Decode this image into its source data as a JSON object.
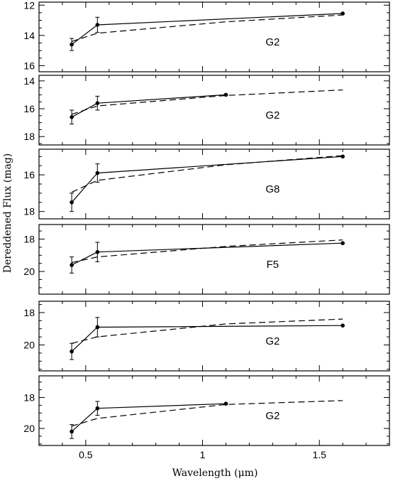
{
  "chart_data": {
    "type": "line",
    "xlabel": "Wavelength (μm)",
    "ylabel": "Dereddened Flux (mag)",
    "xlim": [
      0.3,
      1.8
    ],
    "x_ticks": [
      {
        "value": 0.5,
        "label": "0.5"
      },
      {
        "value": 1.0,
        "label": "1"
      },
      {
        "value": 1.5,
        "label": "1.5"
      }
    ],
    "y_inverted": true,
    "panels": [
      {
        "label": "G2",
        "ylim": [
          16.4,
          11.8
        ],
        "y_ticks": [
          {
            "value": 12,
            "label": "12"
          },
          {
            "value": 14,
            "label": "14"
          },
          {
            "value": 16,
            "label": "16"
          }
        ],
        "observed": [
          {
            "x": 0.44,
            "y": 14.6,
            "err": 0.4
          },
          {
            "x": 0.55,
            "y": 13.3,
            "err": 0.5
          },
          {
            "x": 1.6,
            "y": 12.55,
            "err": null
          }
        ],
        "model": [
          {
            "x": 0.44,
            "y": 14.4
          },
          {
            "x": 0.55,
            "y": 13.85
          },
          {
            "x": 1.1,
            "y": 13.1
          },
          {
            "x": 1.6,
            "y": 12.65
          }
        ]
      },
      {
        "label": "G2",
        "ylim": [
          18.6,
          13.6
        ],
        "y_ticks": [
          {
            "value": 14,
            "label": "14"
          },
          {
            "value": 16,
            "label": "16"
          },
          {
            "value": 18,
            "label": "18"
          }
        ],
        "observed": [
          {
            "x": 0.44,
            "y": 16.6,
            "err": 0.5
          },
          {
            "x": 0.55,
            "y": 15.6,
            "err": 0.5
          },
          {
            "x": 1.1,
            "y": 15.0,
            "err": null
          }
        ],
        "model": [
          {
            "x": 0.44,
            "y": 16.4
          },
          {
            "x": 0.55,
            "y": 15.8
          },
          {
            "x": 1.1,
            "y": 15.05
          },
          {
            "x": 1.6,
            "y": 14.65
          }
        ]
      },
      {
        "label": "G8",
        "ylim": [
          18.4,
          14.6
        ],
        "y_ticks": [
          {
            "value": 16,
            "label": "16"
          },
          {
            "value": 18,
            "label": "18"
          }
        ],
        "observed": [
          {
            "x": 0.44,
            "y": 17.5,
            "err": 0.5
          },
          {
            "x": 0.55,
            "y": 15.9,
            "err": 0.5
          },
          {
            "x": 1.6,
            "y": 15.0,
            "err": null
          }
        ],
        "model": [
          {
            "x": 0.44,
            "y": 16.95
          },
          {
            "x": 0.55,
            "y": 16.3
          },
          {
            "x": 1.1,
            "y": 15.45
          },
          {
            "x": 1.6,
            "y": 14.95
          }
        ]
      },
      {
        "label": "F5",
        "ylim": [
          21.4,
          17.1
        ],
        "y_ticks": [
          {
            "value": 18,
            "label": "18"
          },
          {
            "value": 20,
            "label": "20"
          }
        ],
        "observed": [
          {
            "x": 0.44,
            "y": 19.6,
            "err": 0.5
          },
          {
            "x": 0.55,
            "y": 18.8,
            "err": 0.6
          },
          {
            "x": 1.6,
            "y": 18.25,
            "err": null
          }
        ],
        "model": [
          {
            "x": 0.44,
            "y": 19.45
          },
          {
            "x": 0.55,
            "y": 19.1
          },
          {
            "x": 1.1,
            "y": 18.45
          },
          {
            "x": 1.6,
            "y": 18.05
          }
        ]
      },
      {
        "label": "G2",
        "ylim": [
          21.6,
          17.3
        ],
        "y_ticks": [
          {
            "value": 18,
            "label": "18"
          },
          {
            "value": 20,
            "label": "20"
          }
        ],
        "observed": [
          {
            "x": 0.44,
            "y": 20.4,
            "err": 0.5
          },
          {
            "x": 0.55,
            "y": 18.9,
            "err": 0.6
          },
          {
            "x": 1.6,
            "y": 18.8,
            "err": null
          }
        ],
        "model": [
          {
            "x": 0.44,
            "y": 19.9
          },
          {
            "x": 0.55,
            "y": 19.5
          },
          {
            "x": 1.1,
            "y": 18.7
          },
          {
            "x": 1.6,
            "y": 18.4
          }
        ]
      },
      {
        "label": "G2",
        "ylim": [
          21.1,
          16.6
        ],
        "y_ticks": [
          {
            "value": 18,
            "label": "18"
          },
          {
            "value": 20,
            "label": "20"
          }
        ],
        "observed": [
          {
            "x": 0.44,
            "y": 20.2,
            "err": 0.45
          },
          {
            "x": 0.55,
            "y": 18.7,
            "err": 0.45
          },
          {
            "x": 1.1,
            "y": 18.4,
            "err": null
          }
        ],
        "model": [
          {
            "x": 0.44,
            "y": 19.85
          },
          {
            "x": 0.55,
            "y": 19.35
          },
          {
            "x": 1.1,
            "y": 18.45
          },
          {
            "x": 1.6,
            "y": 18.2
          }
        ]
      }
    ]
  }
}
